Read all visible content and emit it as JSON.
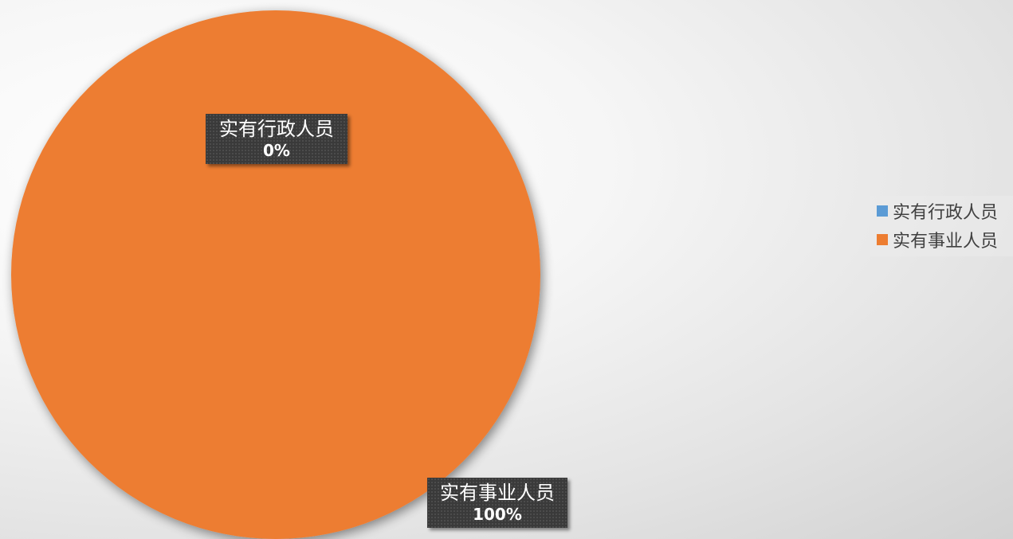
{
  "chart_data": {
    "type": "pie",
    "categories": [
      "实有行政人员",
      "实有事业人员"
    ],
    "values": [
      0,
      100
    ],
    "percent_labels": [
      "0%",
      "100%"
    ],
    "colors": [
      "#5b9bd5",
      "#ed7d31"
    ],
    "legend": "right",
    "legend_entries": [
      "实有行政人员",
      "实有事业人员"
    ]
  }
}
